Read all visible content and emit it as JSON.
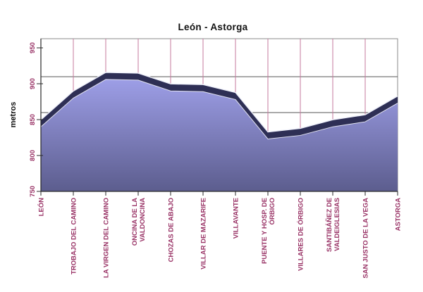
{
  "chart_data": {
    "type": "area",
    "title": "León - Astorga",
    "ylabel": "metros",
    "ylim": [
      750,
      950
    ],
    "ytick_step": 50,
    "ytick_labels": [
      "750",
      "800",
      "850",
      "900",
      "950"
    ],
    "categories": [
      "LEÓN",
      "TROBAJO DEL CAMINO",
      "LA VIRGEN DEL CAMINO",
      "ONCINA DE LA\nVALDONCINA",
      "CHOZAS DE ABAJO",
      "VILLAR DE MAZARIFE",
      "VILLAVANTE",
      "PUENTE Y HOSP. DE\nÓRBIGO",
      "VILLARES DE ÓRBIGO",
      "SANTIBÁÑEZ DE\nVALDEIGLESIAS",
      "SAN JUSTO DE LA VEGA",
      "ASTORGA"
    ],
    "values": [
      840,
      880,
      906,
      905,
      890,
      889,
      878,
      823,
      828,
      840,
      847,
      873
    ],
    "grid": {
      "horizontal": true,
      "vertical": true
    },
    "legend": "none",
    "style": {
      "area_top": "#a1a2ec",
      "area_bottom": "#5c5d8e",
      "ridge": "#2e2f55",
      "ridge_highlight": "#eef0fa",
      "v_grid": "#c4789c",
      "h_grid": "#555555",
      "axis": "#2a2a2a",
      "border": "#8a8a8a",
      "tick_label": "#993366",
      "title_color": "#111111"
    }
  }
}
